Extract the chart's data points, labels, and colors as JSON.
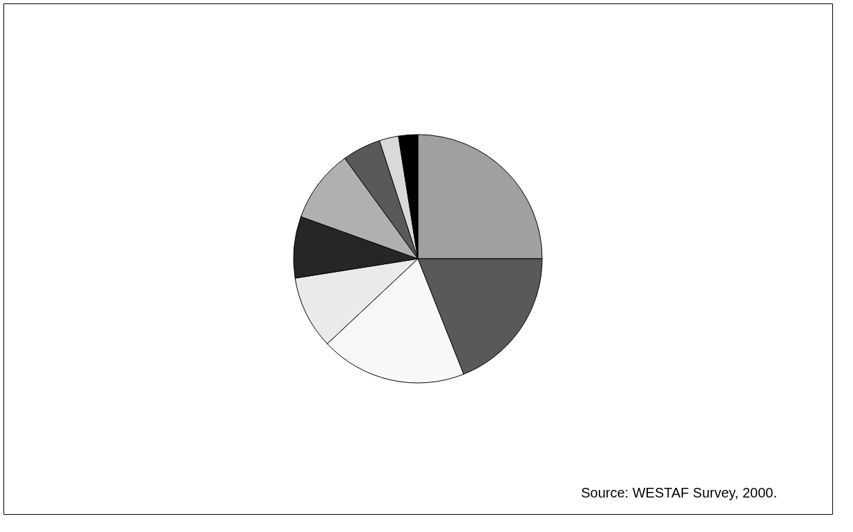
{
  "chart_data": {
    "type": "pie",
    "categories": [
      null,
      null,
      null,
      null,
      null,
      null,
      null,
      null,
      null
    ],
    "values": [
      25,
      19,
      19,
      9.5,
      8,
      9.5,
      5,
      2.5,
      2.5
    ],
    "colors": [
      "#a0a0a0",
      "#595959",
      "#f8f8f8",
      "#eaeaea",
      "#262626",
      "#b0b0b0",
      "#595959",
      "#d9d9d9",
      "#000000"
    ],
    "annotations": [
      "Source: WESTAF Survey, 2000."
    ]
  }
}
